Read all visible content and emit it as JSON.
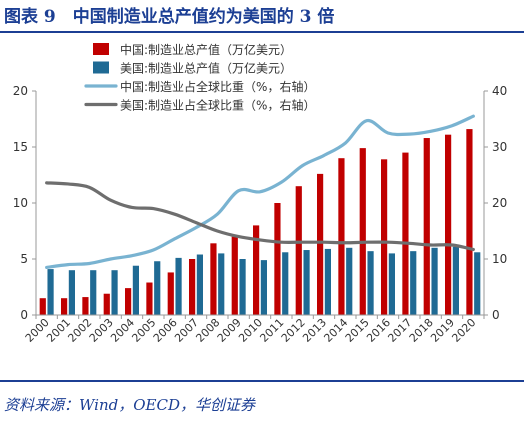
{
  "figure": {
    "title": "图表 9　中国制造业总产值约为美国的 3 倍",
    "source": "资料来源：Wind，OECD，华创证券"
  },
  "colors": {
    "china_bar": "#c00000",
    "us_bar": "#1f6a94",
    "china_line": "#79b3d1",
    "us_line": "#6e6e6e",
    "axis": "#999999",
    "text": "#333333",
    "brand": "#1c3f94"
  },
  "chart_data": {
    "type": "bar",
    "categories": [
      "2000",
      "2001",
      "2002",
      "2003",
      "2004",
      "2005",
      "2006",
      "2007",
      "2008",
      "2009",
      "2010",
      "2011",
      "2012",
      "2013",
      "2014",
      "2015",
      "2016",
      "2017",
      "2018",
      "2019",
      "2020"
    ],
    "series": [
      {
        "name": "中国:制造业总产值（万亿美元）",
        "type": "bar",
        "axis": "left",
        "values": [
          1.5,
          1.5,
          1.6,
          1.9,
          2.4,
          2.9,
          3.8,
          5.0,
          6.4,
          7.0,
          8.0,
          10.0,
          11.5,
          12.6,
          14.0,
          14.9,
          13.9,
          14.5,
          15.8,
          16.1,
          16.6
        ]
      },
      {
        "name": "美国:制造业总产值（万亿美元）",
        "type": "bar",
        "axis": "left",
        "values": [
          4.1,
          4.0,
          4.0,
          4.0,
          4.4,
          4.8,
          5.1,
          5.4,
          5.5,
          5.0,
          4.9,
          5.6,
          5.8,
          5.9,
          6.0,
          5.7,
          5.5,
          5.7,
          6.0,
          6.1,
          5.6
        ]
      },
      {
        "name": "中国:制造业占全球比重（%，右轴）",
        "type": "line",
        "axis": "right",
        "values": [
          8.5,
          9.0,
          9.2,
          10.0,
          10.6,
          11.6,
          13.6,
          15.6,
          18.0,
          22.2,
          22.0,
          23.7,
          26.7,
          28.5,
          30.7,
          34.7,
          32.5,
          32.3,
          32.8,
          33.8,
          35.5
        ]
      },
      {
        "name": "美国:制造业占全球比重（%，右轴）",
        "type": "line",
        "axis": "right",
        "values": [
          23.6,
          23.4,
          22.8,
          20.5,
          19.2,
          19.0,
          18.0,
          16.5,
          15.0,
          14.0,
          13.4,
          13.0,
          13.0,
          13.0,
          12.9,
          13.0,
          13.0,
          12.8,
          12.5,
          12.5,
          11.7
        ]
      }
    ],
    "ylim_left": [
      0,
      20
    ],
    "ylim_right": [
      0,
      40
    ],
    "yticks_left": [
      "0",
      "5",
      "10",
      "15",
      "20"
    ],
    "yticks_right": [
      "0",
      "10",
      "20",
      "30",
      "40"
    ],
    "legend_position": "top-left",
    "grid": false
  }
}
